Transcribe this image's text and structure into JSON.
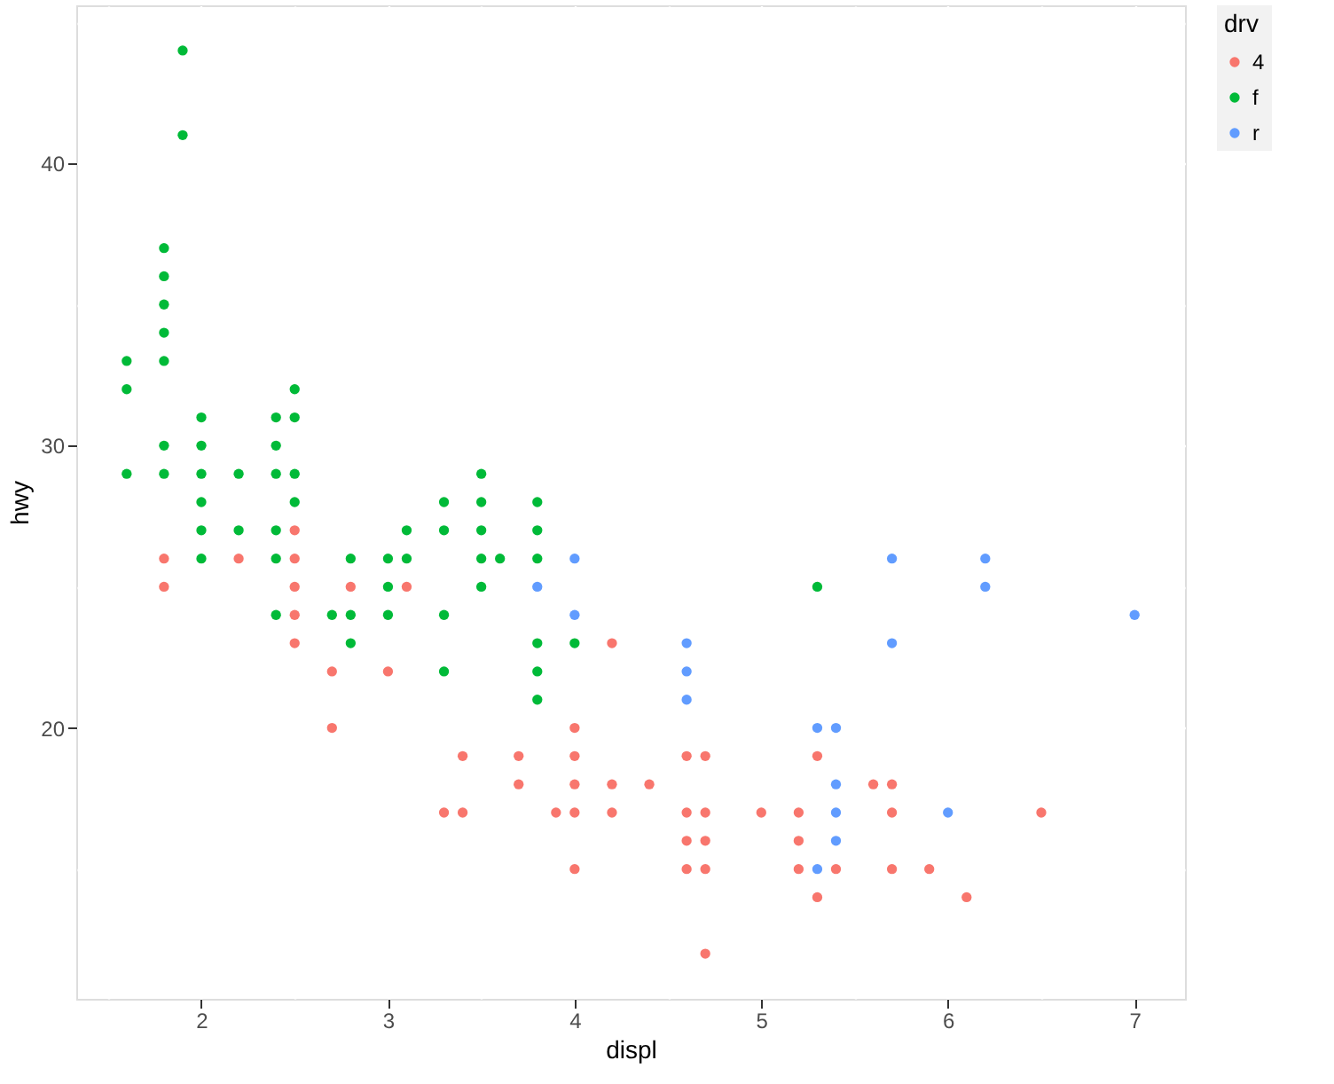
{
  "chart_data": {
    "type": "scatter",
    "xlabel": "displ",
    "ylabel": "hwy",
    "legend_title": "drv",
    "legend": "right",
    "grid": true,
    "marker": "circle",
    "xlim": [
      1.33,
      7.27
    ],
    "ylim": [
      10.4,
      45.6
    ],
    "xticks": [
      {
        "value": 1.5,
        "label": null
      },
      2,
      {
        "value": 2.5,
        "label": null
      },
      3,
      {
        "value": 3.5,
        "label": null
      },
      4,
      {
        "value": 4.5,
        "label": null
      },
      5,
      {
        "value": 5.5,
        "label": null
      },
      6,
      {
        "value": 6.5,
        "label": null
      },
      7
    ],
    "yticks": [
      {
        "value": 15,
        "label": null
      },
      20,
      {
        "value": 25,
        "label": null
      },
      30,
      {
        "value": 35,
        "label": null
      },
      40,
      {
        "value": 45,
        "label": null
      }
    ],
    "series": [
      {
        "name": "4",
        "color": "#f8766d",
        "x": [
          1.8,
          1.8,
          2.2,
          2.5,
          2.5,
          2.5,
          2.5,
          2.5,
          2.7,
          2.7,
          2.8,
          3.0,
          3.1,
          3.3,
          3.4,
          3.4,
          3.7,
          3.7,
          3.9,
          4.0,
          4.0,
          4.0,
          4.0,
          4.0,
          4.2,
          4.2,
          4.2,
          4.4,
          4.6,
          4.6,
          4.6,
          4.6,
          4.7,
          4.7,
          4.7,
          4.7,
          4.7,
          5.0,
          5.2,
          5.2,
          5.2,
          5.3,
          5.3,
          5.4,
          5.6,
          5.7,
          5.7,
          5.7,
          5.9,
          6.1,
          6.5
        ],
        "values": [
          26,
          25,
          26,
          27,
          26,
          25,
          24,
          23,
          22,
          20,
          25,
          22,
          25,
          17,
          19,
          17,
          19,
          18,
          17,
          20,
          19,
          18,
          17,
          15,
          23,
          18,
          17,
          18,
          19,
          17,
          16,
          15,
          19,
          17,
          16,
          15,
          12,
          17,
          17,
          16,
          15,
          19,
          14,
          15,
          18,
          18,
          17,
          15,
          15,
          14,
          17
        ]
      },
      {
        "name": "f",
        "color": "#00ba38",
        "x": [
          1.6,
          1.6,
          1.6,
          1.8,
          1.8,
          1.8,
          1.8,
          1.8,
          1.8,
          1.8,
          1.9,
          1.9,
          2.0,
          2.0,
          2.0,
          2.0,
          2.0,
          2.0,
          2.2,
          2.2,
          2.4,
          2.4,
          2.4,
          2.4,
          2.4,
          2.4,
          2.5,
          2.5,
          2.5,
          2.5,
          2.7,
          2.8,
          2.8,
          2.8,
          3.0,
          3.0,
          3.0,
          3.1,
          3.1,
          3.3,
          3.3,
          3.3,
          3.3,
          3.5,
          3.5,
          3.5,
          3.5,
          3.5,
          3.6,
          3.8,
          3.8,
          3.8,
          3.8,
          3.8,
          3.8,
          4.0,
          5.3
        ],
        "values": [
          33,
          32,
          29,
          37,
          36,
          35,
          34,
          33,
          30,
          29,
          44,
          41,
          31,
          30,
          29,
          28,
          27,
          26,
          29,
          27,
          31,
          30,
          29,
          27,
          26,
          24,
          32,
          31,
          29,
          28,
          24,
          26,
          24,
          23,
          26,
          25,
          24,
          27,
          26,
          28,
          27,
          24,
          22,
          29,
          28,
          27,
          26,
          25,
          26,
          28,
          27,
          26,
          23,
          22,
          21,
          23,
          25
        ]
      },
      {
        "name": "r",
        "color": "#619cff",
        "x": [
          3.8,
          4.0,
          4.0,
          4.6,
          4.6,
          4.6,
          5.3,
          5.3,
          5.4,
          5.4,
          5.4,
          5.4,
          5.7,
          5.7,
          6.0,
          6.2,
          6.2,
          7.0
        ],
        "values": [
          25,
          26,
          24,
          23,
          22,
          21,
          20,
          15,
          20,
          18,
          17,
          16,
          26,
          23,
          17,
          26,
          25,
          24
        ]
      }
    ]
  }
}
